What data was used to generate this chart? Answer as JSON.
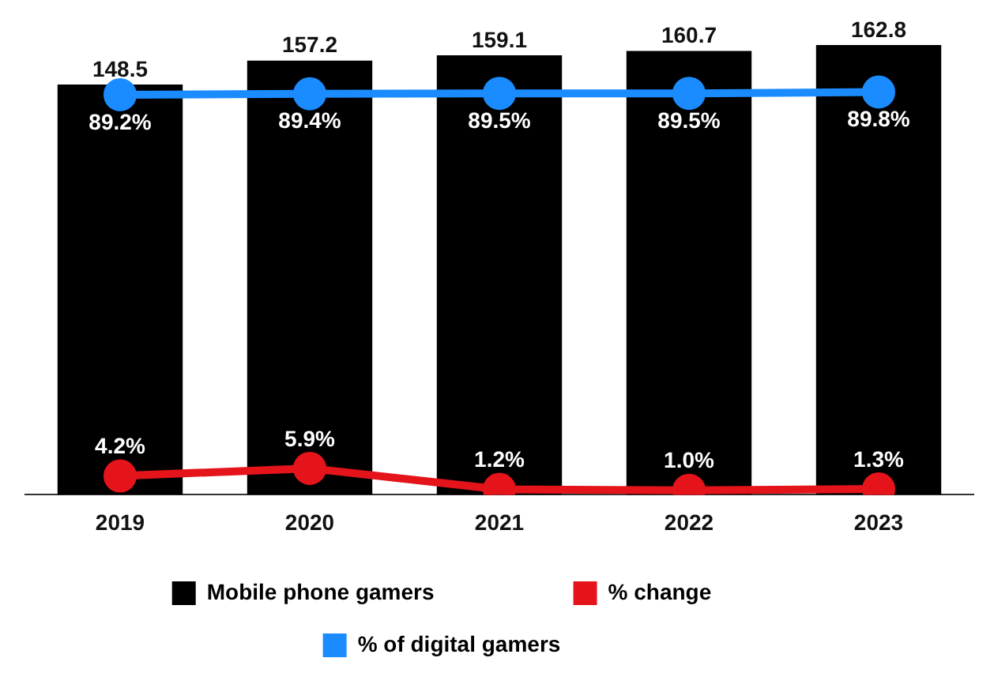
{
  "chart_data": {
    "type": "bar",
    "categories": [
      "2019",
      "2020",
      "2021",
      "2022",
      "2023"
    ],
    "series": [
      {
        "name": "Mobile phone gamers",
        "color": "#000000",
        "values": [
          148.5,
          157.2,
          159.1,
          160.7,
          162.8
        ]
      },
      {
        "name": "% change",
        "type": "line",
        "axis": "y2",
        "color": "#e5141b",
        "values": [
          4.2,
          5.9,
          1.2,
          1.0,
          1.3
        ],
        "value_labels": [
          "4.2%",
          "5.9%",
          "1.2%",
          "1.0%",
          "1.3%"
        ]
      },
      {
        "name": "% of digital gamers",
        "type": "line",
        "axis": "y2",
        "color": "#1a8cff",
        "values": [
          89.2,
          89.4,
          89.5,
          89.5,
          89.8
        ],
        "value_labels": [
          "89.2%",
          "89.4%",
          "89.5%",
          "89.5%",
          "89.8%"
        ]
      }
    ],
    "data_labels": true,
    "marker": "circle",
    "legend": "bottom",
    "grid": false
  }
}
